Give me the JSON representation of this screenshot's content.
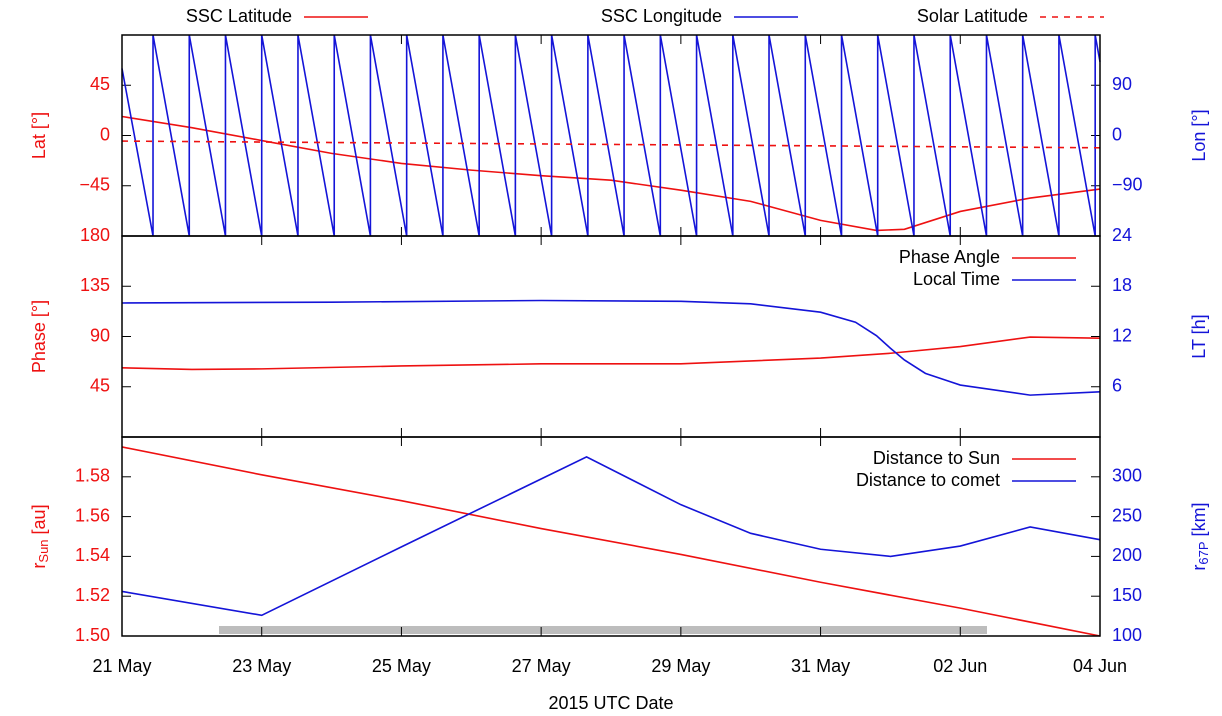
{
  "chart_data": [
    {
      "type": "line",
      "ylabel": "Lat [°]",
      "y2label": "Lon [°]",
      "xlim": [
        0,
        14
      ],
      "ylim": [
        -90,
        90
      ],
      "yticks": [
        {
          "value": -45,
          "label": "−45"
        },
        0,
        45
      ],
      "y2lim": [
        -180,
        180
      ],
      "y2ticks": [
        {
          "value": -90,
          "label": "−90"
        },
        0,
        90
      ],
      "legend": "top",
      "series": [
        {
          "name": "SSC Latitude",
          "color": "#ee1111",
          "x": [
            0,
            1,
            2,
            3,
            4,
            5,
            6,
            7,
            8,
            9,
            10,
            10.8,
            11.2,
            12,
            13,
            14
          ],
          "values": [
            17,
            7,
            -4.5,
            -16,
            -25,
            -31,
            -36,
            -40,
            -49,
            -59,
            -76,
            -85,
            -84,
            -68,
            -56,
            -48
          ]
        },
        {
          "name": "SSC Longitude",
          "color": "#1414d8",
          "axis": "y2",
          "x": [
            0,
            0.444,
            0.444,
            0.963,
            0.963,
            1.481,
            1.481,
            2.0,
            2.0,
            2.519,
            2.519,
            3.038,
            3.038,
            3.556,
            3.556,
            4.075,
            4.075,
            4.594,
            4.594,
            5.113,
            5.113,
            5.631,
            5.631,
            6.15,
            6.15,
            6.669,
            6.669,
            7.187,
            7.187,
            7.706,
            7.706,
            8.225,
            8.225,
            8.744,
            8.744,
            9.262,
            9.262,
            9.781,
            9.781,
            10.3,
            10.3,
            10.818,
            10.818,
            11.337,
            11.337,
            11.856,
            11.856,
            12.375,
            12.375,
            12.893,
            12.893,
            13.412,
            13.412,
            13.931,
            13.931,
            14
          ],
          "values": [
            120,
            -180,
            180,
            -180,
            180,
            -180,
            180,
            -180,
            180,
            -180,
            180,
            -180,
            180,
            -180,
            180,
            -180,
            180,
            -180,
            180,
            -180,
            180,
            -180,
            180,
            -180,
            180,
            -180,
            180,
            -180,
            180,
            -180,
            180,
            -180,
            180,
            -180,
            180,
            -180,
            180,
            -180,
            180,
            -180,
            180,
            -180,
            180,
            -180,
            180,
            -180,
            180,
            -180,
            180,
            -180,
            180,
            -180,
            180,
            -180,
            180,
            132
          ]
        },
        {
          "name": "Solar Latitude",
          "color": "#ee1111",
          "dash": true,
          "x": [
            0,
            7,
            14
          ],
          "values": [
            -5,
            -8,
            -11
          ]
        }
      ]
    },
    {
      "type": "line",
      "ylabel": "Phase [°]",
      "y2label": "LT [h]",
      "xlim": [
        0,
        14
      ],
      "ylim": [
        0,
        180
      ],
      "yticks": [
        45,
        90,
        135,
        180
      ],
      "y2lim": [
        0,
        24
      ],
      "y2ticks": [
        6,
        12,
        18,
        24
      ],
      "legend": "upper right",
      "series": [
        {
          "name": "Phase Angle",
          "color": "#ee1111",
          "x": [
            0,
            1,
            2,
            4,
            6,
            8,
            10,
            11,
            12,
            13,
            14
          ],
          "values": [
            62,
            60.5,
            61,
            63.6,
            65.5,
            65.5,
            70.7,
            75,
            81,
            89.5,
            88.5
          ]
        },
        {
          "name": "Local Time",
          "color": "#1414d8",
          "axis": "y2",
          "x": [
            0,
            3,
            6,
            8,
            9,
            10,
            10.5,
            10.8,
            11,
            11.2,
            11.5,
            12,
            13,
            14
          ],
          "values": [
            16.0,
            16.1,
            16.3,
            16.2,
            15.9,
            14.9,
            13.7,
            12.1,
            10.6,
            9.2,
            7.6,
            6.2,
            5.0,
            5.4
          ]
        }
      ]
    },
    {
      "type": "line",
      "ylabel": {
        "text": "r",
        "sub": "Sun",
        "rest": "[au]"
      },
      "y2label": {
        "text": "r",
        "sub": "67P",
        "rest": "[km]"
      },
      "xlim": [
        0,
        14
      ],
      "xticks": [
        {
          "value": 0,
          "label": "21 May"
        },
        {
          "value": 2,
          "label": "23 May"
        },
        {
          "value": 4,
          "label": "25 May"
        },
        {
          "value": 6,
          "label": "27 May"
        },
        {
          "value": 8,
          "label": "29 May"
        },
        {
          "value": 10,
          "label": "31 May"
        },
        {
          "value": 12,
          "label": "02 Jun"
        },
        {
          "value": 14,
          "label": "04 Jun"
        }
      ],
      "xlabel": "2015 UTC Date",
      "ylim": [
        1.5,
        1.6
      ],
      "yticks": [
        {
          "value": 1.5,
          "label": "1.50"
        },
        1.52,
        1.54,
        1.56,
        1.58
      ],
      "y2lim": [
        100,
        350
      ],
      "y2ticks": [
        100,
        150,
        200,
        250,
        300
      ],
      "legend": "upper right",
      "series": [
        {
          "name": "Distance to Sun",
          "color": "#ee1111",
          "x": [
            0,
            2,
            4,
            6,
            8,
            10,
            12,
            14
          ],
          "values": [
            1.595,
            1.581,
            1.568,
            1.554,
            1.541,
            1.527,
            1.514,
            1.5
          ]
        },
        {
          "name": "Distance to comet",
          "color": "#1414d8",
          "axis": "y2",
          "x": [
            0,
            2,
            4,
            6.65,
            8,
            9,
            10,
            11,
            12,
            13,
            14
          ],
          "values": [
            156,
            126,
            212,
            325,
            265,
            229,
            209,
            200,
            213,
            237,
            221
          ]
        }
      ]
    }
  ]
}
